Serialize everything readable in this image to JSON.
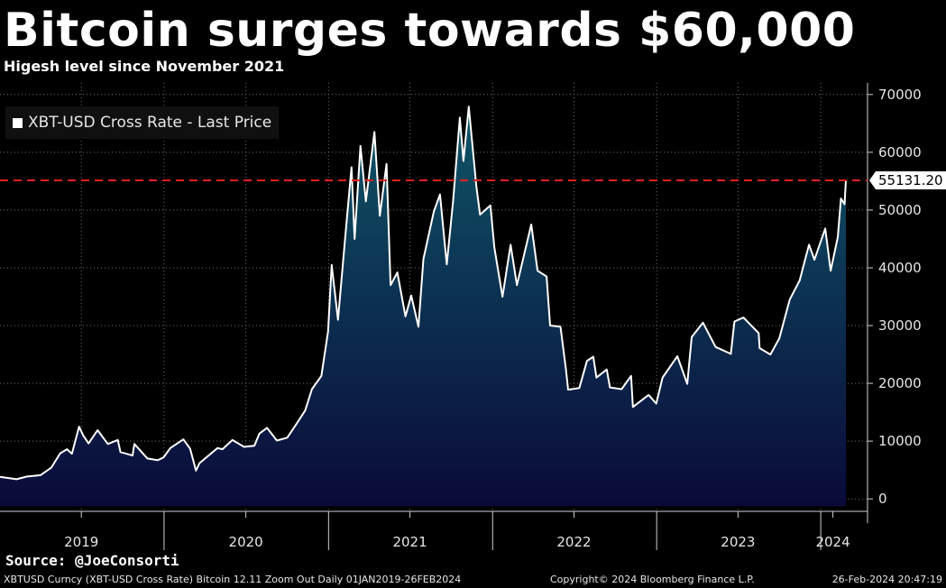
{
  "header": {
    "title": "Bitcoin surges towards $60,000",
    "subtitle": "Higesh level since November 2021"
  },
  "source": "Source: @JoeConsorti",
  "footer": {
    "left": "XBTUSD Curncy (XBT-USD Cross Rate) Bitcoin 12.11 Zoom Out  Daily 01JAN2019-26FEB2024",
    "center": "Copyright© 2024 Bloomberg Finance L.P.",
    "right": "26-Feb-2024 20:47:19"
  },
  "colors": {
    "background": "#000000",
    "line": "#ffffff",
    "area_top": "#0f5566",
    "area_bottom": "#0a0a3a",
    "reference_line": "#e0201e",
    "grid": "#6f6f6f"
  },
  "chart_data": {
    "type": "area",
    "title": "Bitcoin surges towards $60,000",
    "subtitle": "Higesh level since November 2021",
    "legend": [
      "XBT-USD Cross Rate - Last Price"
    ],
    "legend_position": "top-left",
    "x_range": [
      "2019-01-01",
      "2024-02-26"
    ],
    "ylim": [
      -2000,
      72000
    ],
    "yticks": [
      0,
      10000,
      20000,
      30000,
      40000,
      50000,
      60000,
      70000
    ],
    "yticks_labels": [
      "0",
      "10000",
      "20000",
      "30000",
      "40000",
      "50000",
      "60000",
      "70000"
    ],
    "xtick_labels": [
      {
        "label": "2019",
        "date": "2019-07-01"
      },
      {
        "label": "2020",
        "date": "2020-07-01"
      },
      {
        "label": "2021",
        "date": "2021-07-01"
      },
      {
        "label": "2022",
        "date": "2022-07-01"
      },
      {
        "label": "2023",
        "date": "2023-07-01"
      },
      {
        "label": "2024",
        "date": "2024-01-28"
      }
    ],
    "year_boundaries": [
      "2020-01-01",
      "2021-01-01",
      "2022-01-01",
      "2023-01-01",
      "2024-01-01"
    ],
    "grid": true,
    "last_value": 55131.2,
    "last_value_label": "55131.20",
    "reference_line": 55131.2,
    "series": [
      {
        "name": "XBT-USD Cross Rate - Last Price",
        "points": [
          [
            "2019-01-01",
            3800
          ],
          [
            "2019-02-07",
            3400
          ],
          [
            "2019-03-01",
            3850
          ],
          [
            "2019-04-01",
            4100
          ],
          [
            "2019-04-25",
            5400
          ],
          [
            "2019-05-15",
            7900
          ],
          [
            "2019-05-30",
            8600
          ],
          [
            "2019-06-10",
            7800
          ],
          [
            "2019-06-26",
            12500
          ],
          [
            "2019-07-05",
            11000
          ],
          [
            "2019-07-17",
            9600
          ],
          [
            "2019-08-06",
            11900
          ],
          [
            "2019-08-29",
            9500
          ],
          [
            "2019-09-20",
            10200
          ],
          [
            "2019-09-26",
            8100
          ],
          [
            "2019-10-23",
            7500
          ],
          [
            "2019-10-27",
            9500
          ],
          [
            "2019-11-25",
            7000
          ],
          [
            "2019-12-18",
            6700
          ],
          [
            "2019-12-31",
            7200
          ],
          [
            "2020-01-15",
            8800
          ],
          [
            "2020-02-13",
            10300
          ],
          [
            "2020-02-28",
            8700
          ],
          [
            "2020-03-12",
            4900
          ],
          [
            "2020-03-20",
            6200
          ],
          [
            "2020-04-29",
            8800
          ],
          [
            "2020-05-10",
            8600
          ],
          [
            "2020-06-01",
            10200
          ],
          [
            "2020-06-27",
            9000
          ],
          [
            "2020-07-20",
            9200
          ],
          [
            "2020-07-31",
            11300
          ],
          [
            "2020-08-17",
            12300
          ],
          [
            "2020-09-08",
            10100
          ],
          [
            "2020-10-01",
            10600
          ],
          [
            "2020-10-21",
            12900
          ],
          [
            "2020-11-10",
            15300
          ],
          [
            "2020-11-25",
            19000
          ],
          [
            "2020-12-16",
            21300
          ],
          [
            "2020-12-31",
            29000
          ],
          [
            "2021-01-08",
            40500
          ],
          [
            "2021-01-22",
            31000
          ],
          [
            "2021-02-08",
            46200
          ],
          [
            "2021-02-21",
            57400
          ],
          [
            "2021-02-28",
            45000
          ],
          [
            "2021-03-13",
            61100
          ],
          [
            "2021-03-25",
            51500
          ],
          [
            "2021-04-13",
            63500
          ],
          [
            "2021-04-25",
            49000
          ],
          [
            "2021-05-10",
            58000
          ],
          [
            "2021-05-19",
            37000
          ],
          [
            "2021-06-03",
            39200
          ],
          [
            "2021-06-21",
            31600
          ],
          [
            "2021-07-04",
            35200
          ],
          [
            "2021-07-20",
            29800
          ],
          [
            "2021-07-31",
            41500
          ],
          [
            "2021-08-23",
            49700
          ],
          [
            "2021-09-06",
            52700
          ],
          [
            "2021-09-21",
            40600
          ],
          [
            "2021-10-05",
            51500
          ],
          [
            "2021-10-20",
            66000
          ],
          [
            "2021-10-28",
            58500
          ],
          [
            "2021-11-09",
            67900
          ],
          [
            "2021-11-26",
            54000
          ],
          [
            "2021-12-04",
            49200
          ],
          [
            "2021-12-27",
            50800
          ],
          [
            "2022-01-05",
            43500
          ],
          [
            "2022-01-23",
            35000
          ],
          [
            "2022-02-10",
            44000
          ],
          [
            "2022-02-24",
            37000
          ],
          [
            "2022-03-28",
            47500
          ],
          [
            "2022-04-11",
            39500
          ],
          [
            "2022-05-01",
            38500
          ],
          [
            "2022-05-09",
            30000
          ],
          [
            "2022-06-01",
            29800
          ],
          [
            "2022-06-13",
            22500
          ],
          [
            "2022-06-18",
            18900
          ],
          [
            "2022-07-13",
            19200
          ],
          [
            "2022-07-30",
            23900
          ],
          [
            "2022-08-13",
            24600
          ],
          [
            "2022-08-20",
            21000
          ],
          [
            "2022-09-12",
            22400
          ],
          [
            "2022-09-19",
            19300
          ],
          [
            "2022-10-15",
            19000
          ],
          [
            "2022-11-05",
            21300
          ],
          [
            "2022-11-09",
            15900
          ],
          [
            "2022-12-14",
            18000
          ],
          [
            "2022-12-31",
            16500
          ],
          [
            "2023-01-14",
            21000
          ],
          [
            "2023-02-16",
            24700
          ],
          [
            "2023-03-10",
            19900
          ],
          [
            "2023-03-20",
            28000
          ],
          [
            "2023-04-14",
            30500
          ],
          [
            "2023-05-12",
            26300
          ],
          [
            "2023-06-15",
            25100
          ],
          [
            "2023-06-23",
            30700
          ],
          [
            "2023-07-13",
            31400
          ],
          [
            "2023-08-16",
            28700
          ],
          [
            "2023-08-18",
            26100
          ],
          [
            "2023-09-11",
            25000
          ],
          [
            "2023-10-01",
            27800
          ],
          [
            "2023-10-24",
            34500
          ],
          [
            "2023-11-15",
            37800
          ],
          [
            "2023-12-06",
            44000
          ],
          [
            "2023-12-18",
            41400
          ],
          [
            "2024-01-11",
            46800
          ],
          [
            "2024-01-23",
            39500
          ],
          [
            "2024-02-08",
            45300
          ],
          [
            "2024-02-15",
            52000
          ],
          [
            "2024-02-23",
            51000
          ],
          [
            "2024-02-26",
            55131.2
          ]
        ]
      }
    ]
  }
}
